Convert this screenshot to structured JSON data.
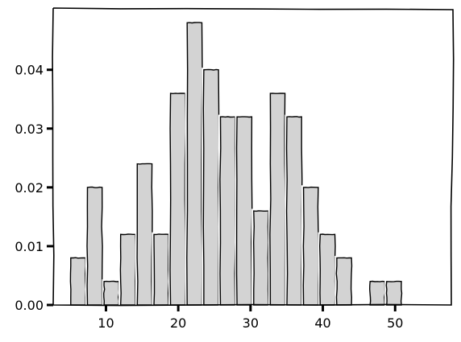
{
  "chart_data": {
    "type": "bar",
    "style": "hand-drawn histogram",
    "bin_width": 2.27,
    "bins": [
      {
        "x0": 5.0,
        "x1": 7.3,
        "density": 0.008
      },
      {
        "x0": 7.3,
        "x1": 9.6,
        "density": 0.02
      },
      {
        "x0": 9.6,
        "x1": 11.9,
        "density": 0.004
      },
      {
        "x0": 11.9,
        "x1": 14.2,
        "density": 0.012
      },
      {
        "x0": 14.2,
        "x1": 16.5,
        "density": 0.024
      },
      {
        "x0": 16.5,
        "x1": 18.8,
        "density": 0.012
      },
      {
        "x0": 18.8,
        "x1": 21.1,
        "density": 0.036
      },
      {
        "x0": 21.1,
        "x1": 23.4,
        "density": 0.048
      },
      {
        "x0": 23.4,
        "x1": 25.7,
        "density": 0.04
      },
      {
        "x0": 25.7,
        "x1": 28.0,
        "density": 0.032
      },
      {
        "x0": 28.0,
        "x1": 30.3,
        "density": 0.032
      },
      {
        "x0": 30.3,
        "x1": 32.6,
        "density": 0.016
      },
      {
        "x0": 32.6,
        "x1": 34.9,
        "density": 0.036
      },
      {
        "x0": 34.9,
        "x1": 37.2,
        "density": 0.032
      },
      {
        "x0": 37.2,
        "x1": 39.5,
        "density": 0.02
      },
      {
        "x0": 39.5,
        "x1": 41.8,
        "density": 0.012
      },
      {
        "x0": 41.8,
        "x1": 44.1,
        "density": 0.008
      },
      {
        "x0": 44.1,
        "x1": 46.4,
        "density": 0.0
      },
      {
        "x0": 46.4,
        "x1": 48.7,
        "density": 0.004
      },
      {
        "x0": 48.7,
        "x1": 51.0,
        "density": 0.004
      }
    ],
    "xlim": [
      2.7,
      58.0
    ],
    "ylim": [
      0.0,
      0.0505
    ],
    "xticks": [
      10,
      20,
      30,
      40,
      50
    ],
    "xtick_labels": [
      "10",
      "20",
      "30",
      "40",
      "50"
    ],
    "yticks": [
      0.0,
      0.01,
      0.02,
      0.03,
      0.04
    ],
    "ytick_labels": [
      "0.00",
      "0.01",
      "0.02",
      "0.03",
      "0.04"
    ],
    "title": "",
    "xlabel": "",
    "ylabel": "",
    "grid": false,
    "bar_color": "#d3d3d3",
    "edge_color": "#000000",
    "background": "#ffffff"
  }
}
